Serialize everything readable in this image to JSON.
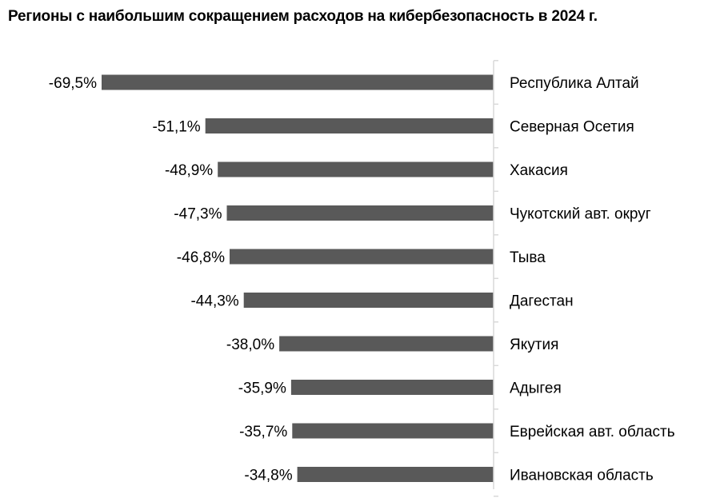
{
  "chart_data": {
    "type": "bar",
    "orientation": "horizontal",
    "title": "Регионы с наибольшим сокращением расходов на кибербезопасность в 2024 г.",
    "categories": [
      "Республика Алтай",
      "Северная Осетия",
      "Хакасия",
      "Чукотский авт. округ",
      "Тыва",
      "Дагестан",
      "Якутия",
      "Адыгея",
      "Еврейская авт. область",
      "Ивановская область"
    ],
    "values": [
      -69.5,
      -51.1,
      -48.9,
      -47.3,
      -46.8,
      -44.3,
      -38.0,
      -35.9,
      -35.7,
      -34.8
    ],
    "data_labels": [
      "-69,5%",
      "-51,1%",
      "-48,9%",
      "-47,3%",
      "-46,8%",
      "-44,3%",
      "-38,0%",
      "-35,9%",
      "-35,7%",
      "-34,8%"
    ],
    "xlim": [
      -69.5,
      0
    ],
    "bar_color": "#595959",
    "axis_color": "#d9d9d9",
    "grid": false,
    "legend": "none"
  }
}
